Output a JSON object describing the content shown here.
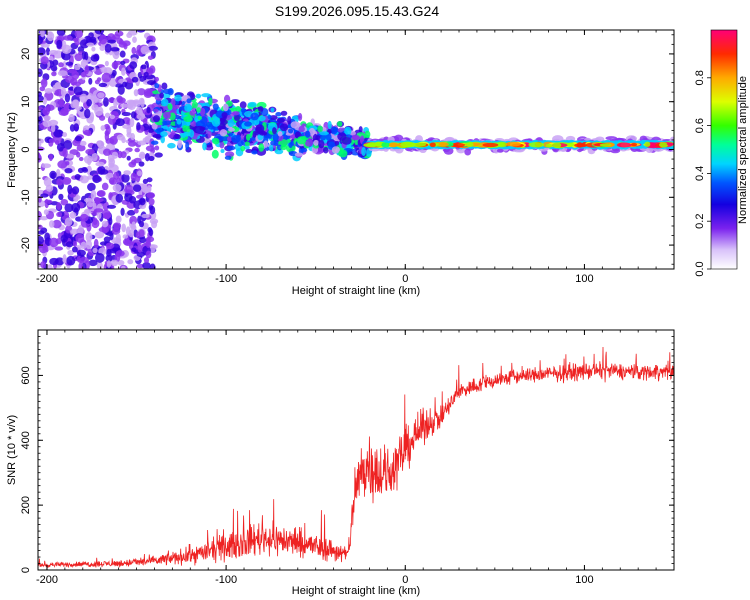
{
  "title": "S199.2026.095.15.43.G24",
  "colors": {
    "snr_line": "#ee2222",
    "axis": "#000000",
    "colormap": [
      "#f0e6ff",
      "#c9a3f5",
      "#8a33ee",
      "#3300dd",
      "#0044ff",
      "#00ccff",
      "#00ff66",
      "#99ff00",
      "#ffff00",
      "#ff9900",
      "#ff2200",
      "#ff0066"
    ]
  },
  "chart_data": [
    {
      "type": "heatmap",
      "name": "spectrogram",
      "xlabel": "Height of straight line (km)",
      "ylabel": "Frequency (Hz)",
      "xlim": [
        -205,
        150
      ],
      "ylim": [
        -25,
        25
      ],
      "xticks": [
        -200,
        -100,
        0,
        100
      ],
      "xtick_labels": [
        "-200",
        "-100",
        "0",
        "100"
      ],
      "yticks": [
        -20,
        -10,
        0,
        10,
        20
      ],
      "ytick_labels": [
        "-20",
        "-10",
        "0",
        "10",
        "20"
      ],
      "colorbar": {
        "label": "Normalized spectral amplitude",
        "range": [
          0,
          1
        ],
        "ticks": [
          0.0,
          0.2,
          0.4,
          0.6,
          0.8
        ],
        "tick_labels": [
          "0.0",
          "0.2",
          "0.4",
          "0.6",
          "0.8"
        ]
      },
      "features": [
        {
          "region": "noise",
          "x_range": [
            -205,
            -140
          ],
          "freq_range": [
            -25,
            25
          ],
          "amplitude": 0.15
        },
        {
          "region": "scatter",
          "x_range": [
            -140,
            -20
          ],
          "freq_center": 7,
          "freq_center_end": 1,
          "spread": 9,
          "amplitude": 0.35
        },
        {
          "region": "tone",
          "x_range": [
            -20,
            150
          ],
          "freq": 1.0,
          "amplitude": 0.9
        }
      ]
    },
    {
      "type": "line",
      "name": "snr",
      "xlabel": "Height of straight line (km)",
      "ylabel": "SNR (10 * v/v)",
      "xlim": [
        -205,
        150
      ],
      "ylim": [
        0,
        740
      ],
      "xticks": [
        -200,
        -100,
        0,
        100
      ],
      "xtick_labels": [
        "-200",
        "-100",
        "0",
        "100"
      ],
      "yticks": [
        0,
        200,
        400,
        600
      ],
      "ytick_labels": [
        "0",
        "200",
        "400",
        "600"
      ],
      "series": [
        {
          "name": "SNR",
          "x": [
            -205,
            -180,
            -160,
            -140,
            -120,
            -100,
            -80,
            -60,
            -40,
            -32,
            -30,
            -28,
            -25,
            -20,
            -15,
            -10,
            -5,
            0,
            5,
            10,
            15,
            20,
            25,
            30,
            40,
            50,
            60,
            70,
            80,
            90,
            100,
            110,
            120,
            130,
            140,
            150
          ],
          "mean": [
            15,
            18,
            20,
            28,
            45,
            70,
            100,
            85,
            60,
            45,
            150,
            230,
            300,
            330,
            300,
            290,
            330,
            370,
            410,
            440,
            460,
            470,
            510,
            550,
            570,
            585,
            595,
            600,
            605,
            608,
            612,
            615,
            612,
            610,
            612,
            610
          ],
          "noise": [
            8,
            10,
            12,
            18,
            30,
            45,
            60,
            50,
            40,
            30,
            70,
            90,
            110,
            120,
            110,
            100,
            90,
            80,
            70,
            60,
            50,
            40,
            35,
            30,
            28,
            28,
            28,
            28,
            28,
            28,
            28,
            30,
            28,
            28,
            28,
            28
          ]
        }
      ]
    }
  ]
}
